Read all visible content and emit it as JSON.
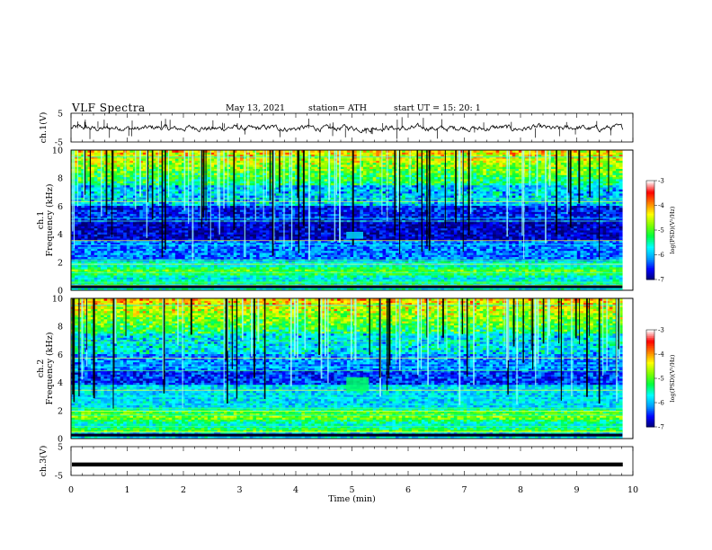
{
  "header": {
    "title": "VLF  Spectra",
    "date": "May 13, 2021",
    "station": "station= ATH",
    "start": "start  UT  =    15: 20: 1"
  },
  "chart_data": [
    {
      "type": "line",
      "name": "ch1-waveform",
      "ylabel": "ch.1(V)",
      "ylim": [
        -5,
        5
      ],
      "yticks": [
        "5",
        "-5"
      ],
      "xlim": [
        0,
        10
      ],
      "baseline_v": -0.2
    },
    {
      "type": "heatmap",
      "name": "ch1-spectrogram",
      "ylabel_channel": "ch.1",
      "ylabel": "Frequency  (kHz)",
      "ylim": [
        0,
        10
      ],
      "yticks": [
        "0",
        "2",
        "4",
        "6",
        "8",
        "10"
      ],
      "xlim": [
        0,
        10
      ],
      "colorbar": {
        "label": "log(PSD)(V²/Hz)",
        "range": [
          -7,
          -3
        ],
        "ticks": [
          "-3",
          "-4",
          "-5",
          "-6",
          "-7"
        ]
      },
      "feature": {
        "t_min": [
          4.9,
          5.2
        ],
        "f_khz": [
          3.7,
          4.2
        ]
      }
    },
    {
      "type": "heatmap",
      "name": "ch2-spectrogram",
      "ylabel_channel": "ch.2",
      "ylabel": "Frequency  (kHz)",
      "ylim": [
        0,
        10
      ],
      "yticks": [
        "0",
        "2",
        "4",
        "6",
        "8",
        "10"
      ],
      "xlim": [
        0,
        10
      ],
      "colorbar": {
        "label": "log(PSD)(V²/Hz)",
        "range": [
          -7,
          -3
        ],
        "ticks": [
          "-3",
          "-4",
          "-5",
          "-6",
          "-7"
        ]
      },
      "feature": {
        "t_min": [
          4.9,
          5.3
        ],
        "f_khz": [
          3.4,
          4.4
        ]
      }
    },
    {
      "type": "line",
      "name": "ch3-waveform",
      "ylabel": "ch.3(V)",
      "ylim": [
        -5,
        5
      ],
      "yticks": [
        "5",
        "-5"
      ],
      "xlim": [
        0,
        10
      ],
      "baseline_v": -1.2
    }
  ],
  "xaxis": {
    "label": "Time  (min)",
    "ticks": [
      "0",
      "1",
      "2",
      "3",
      "4",
      "5",
      "6",
      "7",
      "8",
      "9",
      "10"
    ],
    "data_end_min": 9.82
  },
  "colors": {
    "colormap": [
      "#000070",
      "#0000ff",
      "#00a0ff",
      "#00ffff",
      "#00ff40",
      "#80ff00",
      "#ffff00",
      "#ff8000",
      "#ff0000",
      "#ffffff"
    ],
    "trace": "#000000"
  }
}
